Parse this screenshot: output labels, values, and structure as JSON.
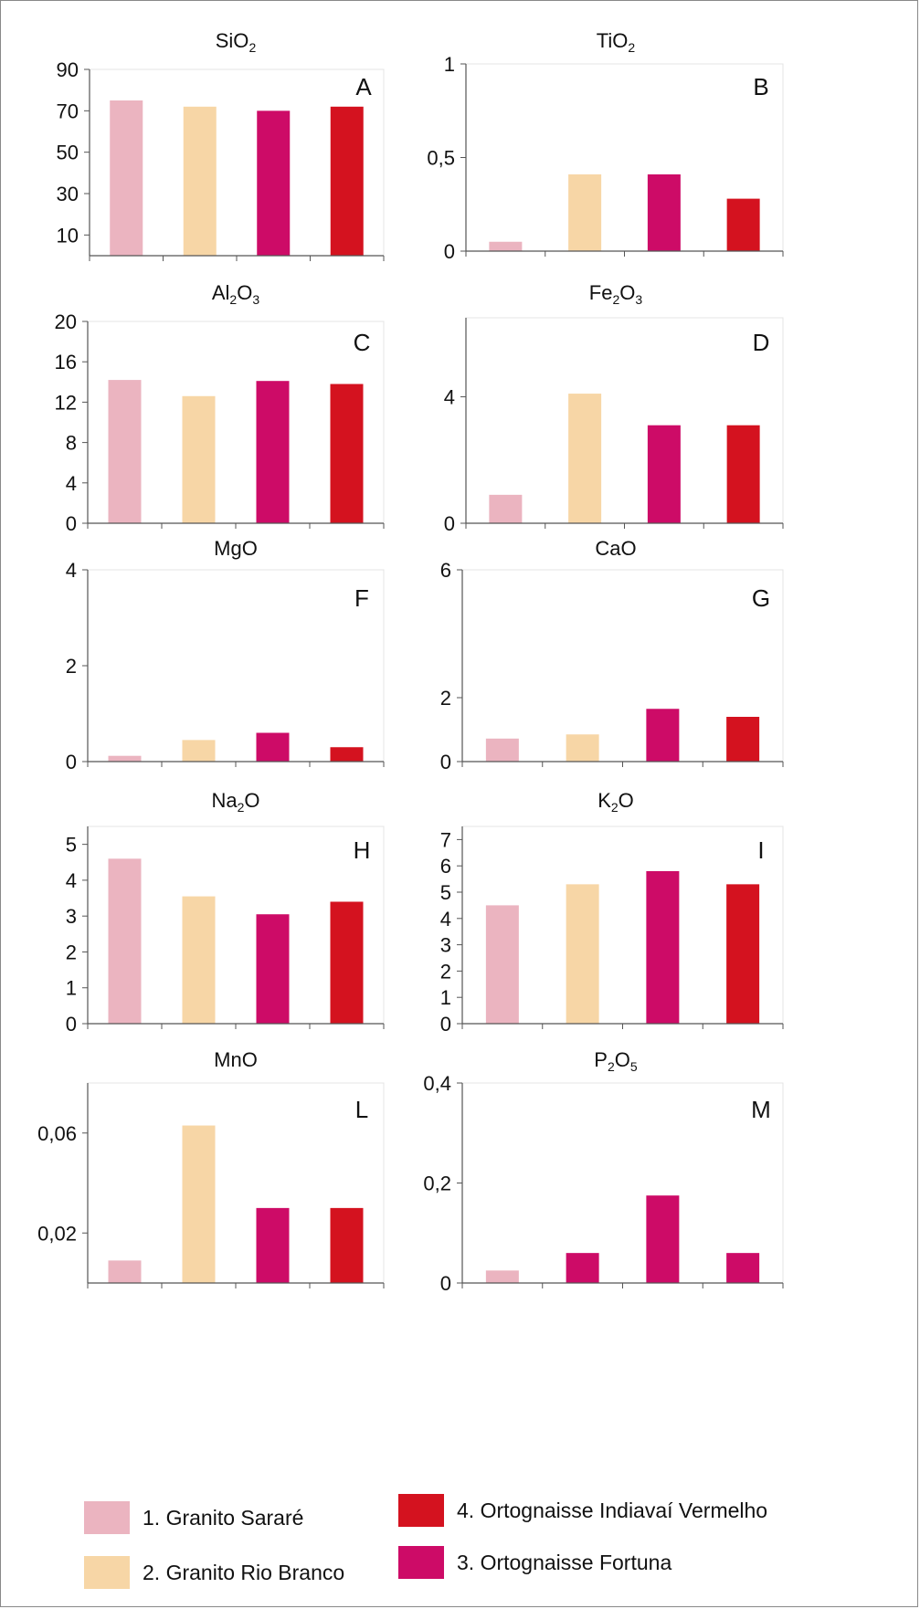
{
  "colors": {
    "granito_sarare": "#ebb4c0",
    "granito_rio_branco": "#f7d6a6",
    "ortognaisse_fortuna": "#cd0b67",
    "ortognaisse_indiavai": "#d4121f",
    "axis": "#555555"
  },
  "legend": {
    "item1": "1. Granito Sararé",
    "item2": "2. Granito Rio Branco",
    "item3": "3. Ortognaisse Fortuna",
    "item4": "4. Ortognaisse Indiavaí Vermelho"
  },
  "chart_data": [
    {
      "type": "bar",
      "panel": "A",
      "title": "SiO",
      "title_sub": "2",
      "title_suffix": "",
      "ylim": [
        0,
        90
      ],
      "yticks": [
        "10",
        "30",
        "50",
        "70",
        "90"
      ],
      "values": [
        75,
        72,
        70,
        72
      ],
      "colors": [
        "#ebb4c0",
        "#f7d6a6",
        "#cd0b67",
        "#d4121f"
      ]
    },
    {
      "type": "bar",
      "panel": "B",
      "title": "TiO",
      "title_sub": "2",
      "title_suffix": "",
      "ylim": [
        0,
        1
      ],
      "yticks": [
        "0",
        "0,5",
        "1"
      ],
      "values": [
        0.05,
        0.41,
        0.41,
        0.28
      ],
      "colors": [
        "#ebb4c0",
        "#f7d6a6",
        "#cd0b67",
        "#d4121f"
      ]
    },
    {
      "type": "bar",
      "panel": "C",
      "title": "Al",
      "title_sub": "2",
      "title_suffix": "O",
      "title_sub2": "3",
      "ylim": [
        0,
        20
      ],
      "yticks": [
        "0",
        "4",
        "8",
        "12",
        "16",
        "20"
      ],
      "values": [
        14.2,
        12.6,
        14.1,
        13.8
      ],
      "colors": [
        "#ebb4c0",
        "#f7d6a6",
        "#cd0b67",
        "#d4121f"
      ]
    },
    {
      "type": "bar",
      "panel": "D",
      "title": "Fe",
      "title_sub": "2",
      "title_suffix": "O",
      "title_sub2": "3",
      "ylim": [
        0,
        6.5
      ],
      "yticks": [
        "0",
        "4"
      ],
      "values": [
        0.9,
        4.1,
        3.1,
        3.1
      ],
      "colors": [
        "#ebb4c0",
        "#f7d6a6",
        "#cd0b67",
        "#d4121f"
      ]
    },
    {
      "type": "bar",
      "panel": "F",
      "title": "MgO",
      "title_sub": "",
      "title_suffix": "",
      "ylim": [
        0,
        4
      ],
      "yticks": [
        "0",
        "2",
        "4"
      ],
      "values": [
        0.12,
        0.45,
        0.6,
        0.3
      ],
      "colors": [
        "#ebb4c0",
        "#f7d6a6",
        "#cd0b67",
        "#d4121f"
      ]
    },
    {
      "type": "bar",
      "panel": "G",
      "title": "CaO",
      "title_sub": "",
      "title_suffix": "",
      "ylim": [
        0,
        6
      ],
      "yticks": [
        "0",
        "2",
        "6"
      ],
      "values": [
        0.72,
        0.85,
        1.65,
        1.4
      ],
      "colors": [
        "#ebb4c0",
        "#f7d6a6",
        "#cd0b67",
        "#d4121f"
      ]
    },
    {
      "type": "bar",
      "panel": "H",
      "title": "Na",
      "title_sub": "2",
      "title_suffix": "O",
      "ylim": [
        0,
        5.5
      ],
      "yticks": [
        "0",
        "1",
        "2",
        "3",
        "4",
        "5"
      ],
      "values": [
        4.6,
        3.55,
        3.05,
        3.4
      ],
      "colors": [
        "#ebb4c0",
        "#f7d6a6",
        "#cd0b67",
        "#d4121f"
      ]
    },
    {
      "type": "bar",
      "panel": "I",
      "title": "K",
      "title_sub": "2",
      "title_suffix": "O",
      "ylim": [
        0,
        7.5
      ],
      "yticks": [
        "0",
        "1",
        "2",
        "3",
        "4",
        "5",
        "6",
        "7"
      ],
      "values": [
        4.5,
        5.3,
        5.8,
        5.3
      ],
      "colors": [
        "#ebb4c0",
        "#f7d6a6",
        "#cd0b67",
        "#d4121f"
      ]
    },
    {
      "type": "bar",
      "panel": "L",
      "title": "MnO",
      "title_sub": "",
      "title_suffix": "",
      "ylim": [
        0,
        0.08
      ],
      "yticks": [
        "0,02",
        "0,06"
      ],
      "values": [
        0.009,
        0.063,
        0.03,
        0.03
      ],
      "colors": [
        "#ebb4c0",
        "#f7d6a6",
        "#cd0b67",
        "#d4121f"
      ]
    },
    {
      "type": "bar",
      "panel": "M",
      "title": "P",
      "title_sub": "2",
      "title_suffix": "O",
      "title_sub2": "5",
      "ylim": [
        0,
        0.4
      ],
      "yticks": [
        "0",
        "0,2",
        "0,4"
      ],
      "values": [
        0.025,
        0.06,
        0.175,
        0.06
      ],
      "colors": [
        "#ebb4c0",
        "#cd0b67",
        "#cd0b67",
        "#cd0b67"
      ]
    }
  ]
}
